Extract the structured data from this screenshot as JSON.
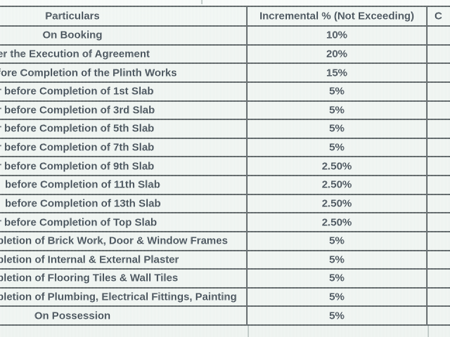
{
  "table": {
    "header": {
      "particulars": "Particulars",
      "incremental": "Incremental % (Not Exceeding)",
      "third_truncated": "C"
    },
    "rows": [
      {
        "particulars": "On Booking",
        "incremental": "10%",
        "left_cutoff": false
      },
      {
        "particulars": "er the Execution of Agreement",
        "incremental": "20%",
        "left_cutoff": true
      },
      {
        "particulars": "fore Completion of the Plinth Works",
        "incremental": "15%",
        "left_cutoff": true
      },
      {
        "particulars": "r before Completion of 1st Slab",
        "incremental": "5%",
        "left_cutoff": true
      },
      {
        "particulars": "r before Completion of 3rd Slab",
        "incremental": "5%",
        "left_cutoff": true
      },
      {
        "particulars": "r before Completion of 5th Slab",
        "incremental": "5%",
        "left_cutoff": true
      },
      {
        "particulars": "r before Completion of 7th Slab",
        "incremental": "5%",
        "left_cutoff": true
      },
      {
        "particulars": "r before Completion of 9th Slab",
        "incremental": "2.50%",
        "left_cutoff": true
      },
      {
        "particulars": "before Completion of 11th Slab",
        "incremental": "2.50%",
        "left_cutoff": true
      },
      {
        "particulars": "before Completion of 13th Slab",
        "incremental": "2.50%",
        "left_cutoff": true
      },
      {
        "particulars": "r before Completion of Top Slab",
        "incremental": "2.50%",
        "left_cutoff": true
      },
      {
        "particulars": "pletion of Brick Work, Door & Window Frames",
        "incremental": "5%",
        "left_cutoff": true
      },
      {
        "particulars": "pletion of Internal & External Plaster",
        "incremental": "5%",
        "left_cutoff": true
      },
      {
        "particulars": "pletion of Flooring Tiles & Wall Tiles",
        "incremental": "5%",
        "left_cutoff": true
      },
      {
        "particulars": "pletion of Plumbing, Electrical Fittings, Painting",
        "incremental": "5%",
        "left_cutoff": true
      },
      {
        "particulars": "On Possession",
        "incremental": "5%",
        "left_cutoff": false
      }
    ]
  },
  "colors": {
    "cell_background": "#f0f5f2",
    "grid_border": "#3d4549",
    "text": "#202c38",
    "top_strip_background": "#fbfdfc"
  }
}
